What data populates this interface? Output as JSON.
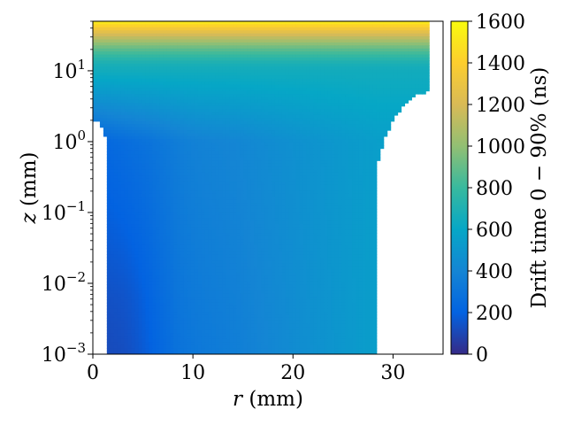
{
  "chart_data": {
    "type": "heatmap",
    "x": {
      "label": "r (mm)",
      "label_symbol": "r",
      "label_unit": "(mm)",
      "range": [
        0,
        35
      ],
      "scale": "linear",
      "ticks": [
        0,
        10,
        20,
        30
      ],
      "tick_labels": [
        "0",
        "10",
        "20",
        "30"
      ]
    },
    "y": {
      "label": "z (mm)",
      "label_symbol": "z",
      "label_unit": "(mm)",
      "range": [
        0.001,
        50
      ],
      "scale": "log",
      "ticks": [
        0.001,
        0.01,
        0.1,
        1,
        10
      ],
      "tick_labels": [
        {
          "base": "10",
          "exp": "−3"
        },
        {
          "base": "10",
          "exp": "−2"
        },
        {
          "base": "10",
          "exp": "−1"
        },
        {
          "base": "10",
          "exp": "0"
        },
        {
          "base": "10",
          "exp": "1"
        }
      ]
    },
    "colorbar": {
      "label": "Drift time 0 − 90% (ns)",
      "range": [
        0,
        1600
      ],
      "ticks": [
        0,
        200,
        400,
        600,
        800,
        1000,
        1200,
        1400,
        1600
      ],
      "tick_labels": [
        "0",
        "200",
        "400",
        "600",
        "800",
        "1000",
        "1200",
        "1400",
        "1600"
      ],
      "colormap": [
        "#352a87",
        "#0363e1",
        "#1485d4",
        "#06a7c6",
        "#38b99e",
        "#92bf73",
        "#d9ba56",
        "#fcce2e",
        "#f9fb0e"
      ]
    },
    "field": {
      "inner_contact_edge_r": 1.5,
      "inner_contact_top_z": 2.0,
      "outer_boundary_r_bottom": 28.5,
      "outer_boundary_r_top": 33.5,
      "outer_corner_z": 5,
      "approx_values_ns": {
        "near_axis_low_z": 120,
        "r10_low_z": 280,
        "r20_low_z": 450,
        "r28_low_z": 550,
        "z10": 650,
        "z20": 900,
        "z50": 1550
      }
    }
  }
}
